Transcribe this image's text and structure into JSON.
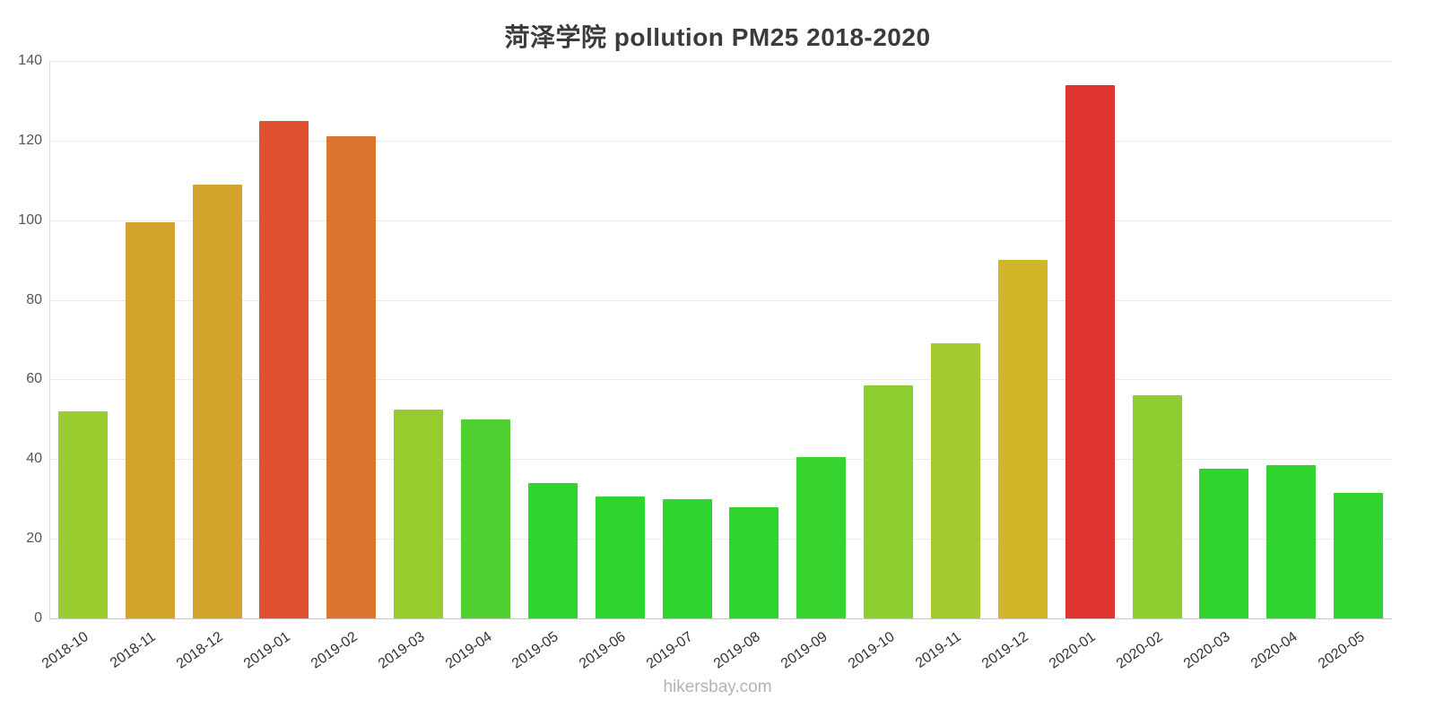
{
  "page": {
    "title": "菏泽学院 pollution PM25 2018-2020",
    "footer": "hikersbay.com"
  },
  "chart_data": {
    "type": "bar",
    "title": "菏泽学院 pollution PM25 2018-2020",
    "categories": [
      "2018-10",
      "2018-11",
      "2018-12",
      "2019-01",
      "2019-02",
      "2019-03",
      "2019-04",
      "2019-05",
      "2019-06",
      "2019-07",
      "2019-08",
      "2019-09",
      "2019-10",
      "2019-11",
      "2019-12",
      "2020-01",
      "2020-02",
      "2020-03",
      "2020-04",
      "2020-05"
    ],
    "values": [
      52,
      99.5,
      109,
      125,
      121,
      52.5,
      50,
      34,
      30.5,
      30,
      28,
      40.5,
      58.5,
      69,
      90,
      134,
      56,
      37.5,
      38.5,
      31.5
    ],
    "bar_colors": [
      "#9acb2f",
      "#d2a42b",
      "#d2a42b",
      "#e0512f",
      "#db7630",
      "#97cc2f",
      "#50cf30",
      "#2fd42f",
      "#2fd42f",
      "#2fd42f",
      "#2fd42f",
      "#37d32f",
      "#8ccd2f",
      "#a2cb2d",
      "#d2b62a",
      "#e03430",
      "#8fcc2e",
      "#2fd42f",
      "#2fd42f",
      "#2fd42f"
    ],
    "ylabel": "",
    "xlabel": "",
    "ylim": [
      0,
      140
    ],
    "yticks": [
      0,
      20,
      40,
      60,
      80,
      100,
      120,
      140
    ],
    "grid": true,
    "legend": "none"
  }
}
